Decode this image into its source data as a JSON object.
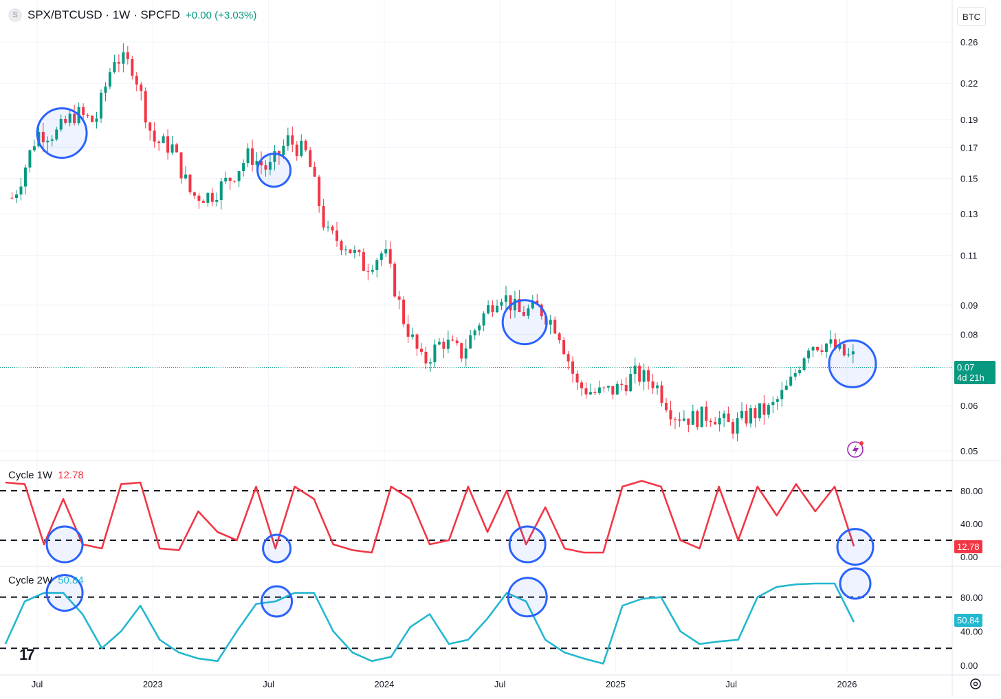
{
  "header": {
    "symbol_icon": "S",
    "title": "SPX/BTCUSD · 1W · SPCFD",
    "change": "+0.00 (+3.03%)",
    "scale_button": "BTC"
  },
  "price_axis": {
    "labels": [
      "0.26",
      "0.22",
      "0.19",
      "0.17",
      "0.15",
      "0.13",
      "0.11",
      "0.09",
      "0.08",
      "0.06",
      "0.05"
    ]
  },
  "current": {
    "price": "0.07",
    "countdown": "4d 21h",
    "color": "#089981"
  },
  "indicator1": {
    "name": "Cycle 1W",
    "value": "12.78",
    "color": "#f23645",
    "levels": [
      "80.00",
      "40.00",
      "0.00"
    ]
  },
  "indicator2": {
    "name": "Cycle 2W",
    "value": "50.84",
    "color": "#22b8cf",
    "levels": [
      "80.00",
      "40.00",
      "0.00"
    ]
  },
  "time_axis": {
    "labels": [
      "Jul",
      "2023",
      "Jul",
      "2024",
      "Jul",
      "2025",
      "Jul",
      "2026"
    ]
  },
  "logo_icon": "tradingview-logo-icon",
  "settings_icon": "gear-icon",
  "lightning_icon": "lightning-icon",
  "colors": {
    "up": "#089981",
    "down": "#f23645",
    "highlight": "#2962ff"
  },
  "chart_data": [
    {
      "type": "candlestick",
      "title": "SPX/BTCUSD · 1W · SPCFD",
      "y_scale": "log",
      "ylim": [
        0.05,
        0.27
      ],
      "x_start": "2022-05",
      "x_end": "2026-02",
      "close_path": [
        [
          "2022-05",
          0.125
        ],
        [
          "2022-06",
          0.145
        ],
        [
          "2022-07",
          0.18
        ],
        [
          "2022-08",
          0.18
        ],
        [
          "2022-09",
          0.195
        ],
        [
          "2022-10",
          0.188
        ],
        [
          "2022-11",
          0.245
        ],
        [
          "2022-12",
          0.235
        ],
        [
          "2023-01",
          0.175
        ],
        [
          "2023-02",
          0.17
        ],
        [
          "2023-03",
          0.14
        ],
        [
          "2023-04",
          0.14
        ],
        [
          "2023-05",
          0.15
        ],
        [
          "2023-06",
          0.165
        ],
        [
          "2023-07",
          0.155
        ],
        [
          "2023-08",
          0.175
        ],
        [
          "2023-09",
          0.165
        ],
        [
          "2023-10",
          0.12
        ],
        [
          "2023-11",
          0.115
        ],
        [
          "2023-12",
          0.105
        ],
        [
          "2024-01",
          0.112
        ],
        [
          "2024-02",
          0.085
        ],
        [
          "2024-03",
          0.071
        ],
        [
          "2024-04",
          0.078
        ],
        [
          "2024-05",
          0.074
        ],
        [
          "2024-06",
          0.085
        ],
        [
          "2024-07",
          0.095
        ],
        [
          "2024-08",
          0.087
        ],
        [
          "2024-09",
          0.089
        ],
        [
          "2024-10",
          0.082
        ],
        [
          "2024-11",
          0.065
        ],
        [
          "2024-12",
          0.063
        ],
        [
          "2025-01",
          0.064
        ],
        [
          "2025-02",
          0.068
        ],
        [
          "2025-03",
          0.066
        ],
        [
          "2025-04",
          0.058
        ],
        [
          "2025-05",
          0.057
        ],
        [
          "2025-06",
          0.058
        ],
        [
          "2025-07",
          0.055
        ],
        [
          "2025-08",
          0.058
        ],
        [
          "2025-09",
          0.059
        ],
        [
          "2025-10",
          0.065
        ],
        [
          "2025-11",
          0.077
        ],
        [
          "2025-12",
          0.077
        ],
        [
          "2026-01",
          0.073
        ]
      ],
      "last": 0.07,
      "annotations": [
        "circle 2022-08",
        "circle 2023-07",
        "circle 2024-08",
        "circle 2026-01"
      ]
    },
    {
      "type": "line",
      "title": "Cycle 1W",
      "ylim": [
        0,
        100
      ],
      "levels": [
        80,
        20
      ],
      "x": [
        "2022-05",
        "2022-06",
        "2022-07",
        "2022-08",
        "2022-09",
        "2022-10",
        "2022-11",
        "2022-12",
        "2023-01",
        "2023-02",
        "2023-03",
        "2023-04",
        "2023-05",
        "2023-06",
        "2023-07",
        "2023-08",
        "2023-09",
        "2023-10",
        "2023-11",
        "2023-12",
        "2024-01",
        "2024-02",
        "2024-03",
        "2024-04",
        "2024-05",
        "2024-06",
        "2024-07",
        "2024-08",
        "2024-09",
        "2024-10",
        "2024-11",
        "2024-12",
        "2025-01",
        "2025-02",
        "2025-03",
        "2025-04",
        "2025-05",
        "2025-06",
        "2025-07",
        "2025-08",
        "2025-09",
        "2025-10",
        "2025-11",
        "2025-12",
        "2026-01"
      ],
      "values": [
        90,
        88,
        15,
        70,
        15,
        10,
        88,
        90,
        10,
        8,
        55,
        30,
        20,
        85,
        10,
        85,
        70,
        15,
        8,
        5,
        85,
        70,
        15,
        20,
        85,
        30,
        80,
        15,
        60,
        10,
        5,
        5,
        85,
        92,
        85,
        20,
        10,
        85,
        20,
        85,
        50,
        88,
        55,
        85,
        12.78
      ],
      "last": 12.78
    },
    {
      "type": "line",
      "title": "Cycle 2W",
      "ylim": [
        0,
        100
      ],
      "levels": [
        80,
        20
      ],
      "x": [
        "2022-05",
        "2022-06",
        "2022-07",
        "2022-08",
        "2022-09",
        "2022-10",
        "2022-11",
        "2022-12",
        "2023-01",
        "2023-02",
        "2023-03",
        "2023-04",
        "2023-05",
        "2023-06",
        "2023-07",
        "2023-08",
        "2023-09",
        "2023-10",
        "2023-11",
        "2023-12",
        "2024-01",
        "2024-02",
        "2024-03",
        "2024-04",
        "2024-05",
        "2024-06",
        "2024-07",
        "2024-08",
        "2024-09",
        "2024-10",
        "2024-11",
        "2024-12",
        "2025-01",
        "2025-02",
        "2025-03",
        "2025-04",
        "2025-05",
        "2025-06",
        "2025-07",
        "2025-08",
        "2025-09",
        "2025-10",
        "2025-11",
        "2025-12",
        "2026-01"
      ],
      "values": [
        25,
        75,
        85,
        85,
        60,
        20,
        40,
        70,
        30,
        15,
        8,
        5,
        40,
        72,
        75,
        85,
        85,
        40,
        15,
        5,
        10,
        45,
        60,
        25,
        30,
        55,
        85,
        75,
        30,
        15,
        8,
        2,
        70,
        78,
        80,
        40,
        25,
        28,
        30,
        80,
        92,
        95,
        96,
        96,
        50.84
      ],
      "last": 50.84
    }
  ]
}
